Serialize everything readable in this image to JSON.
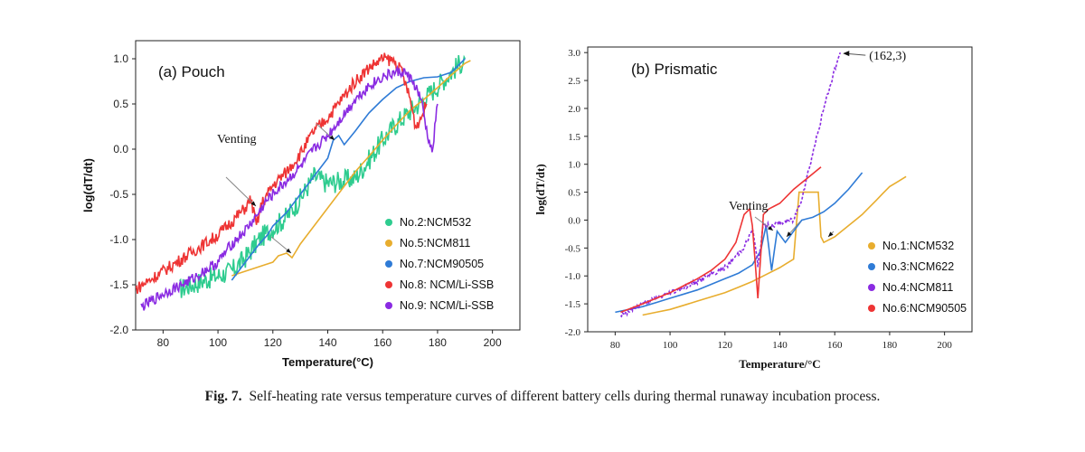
{
  "chart_data": [
    {
      "type": "line",
      "title": "(a) Pouch",
      "xlabel": "Temperature(°C)",
      "ylabel": "log(dT/dt)",
      "xlim": [
        70,
        210
      ],
      "ylim": [
        -2.0,
        1.2
      ],
      "xticks": [
        "80",
        "100",
        "120",
        "140",
        "160",
        "180",
        "200"
      ],
      "yticks": [
        "1.0",
        "0.5",
        "0.0",
        "-0.5",
        "-1.0",
        "-1.5",
        "-2.0"
      ],
      "legend_position": "bottom-right",
      "annotation": "Venting",
      "series": [
        {
          "name": "No.2:NCM532",
          "color": "#2ecc8f",
          "noise": 0.12,
          "x": [
            86,
            95,
            100,
            105,
            110,
            115,
            118,
            125,
            130,
            135,
            140,
            145,
            150,
            155,
            160,
            165,
            170,
            175,
            180,
            185,
            190
          ],
          "y": [
            -1.55,
            -1.45,
            -1.4,
            -1.35,
            -1.2,
            -1.0,
            -0.92,
            -0.75,
            -0.55,
            -0.3,
            -0.38,
            -0.35,
            -0.32,
            -0.12,
            0.1,
            0.28,
            0.42,
            0.55,
            0.7,
            0.85,
            1.0
          ]
        },
        {
          "name": "No.5:NCM811",
          "color": "#e8ad2e",
          "noise": 0.0,
          "x": [
            105,
            110,
            115,
            120,
            122,
            125,
            127,
            130,
            135,
            140,
            145,
            150,
            155,
            160,
            165,
            170,
            175,
            180,
            185,
            190,
            192
          ],
          "y": [
            -1.4,
            -1.35,
            -1.3,
            -1.25,
            -1.18,
            -1.15,
            -1.2,
            -1.05,
            -0.85,
            -0.65,
            -0.45,
            -0.25,
            -0.08,
            0.1,
            0.27,
            0.43,
            0.55,
            0.68,
            0.82,
            0.95,
            0.98
          ]
        },
        {
          "name": "No.7:NCM90505",
          "color": "#2f7bd6",
          "noise": 0.0,
          "x": [
            105,
            110,
            115,
            118,
            120,
            125,
            130,
            135,
            140,
            142,
            144,
            146,
            150,
            155,
            160,
            165,
            170,
            175,
            180,
            185,
            190
          ],
          "y": [
            -1.45,
            -1.25,
            -1.05,
            -0.95,
            -0.85,
            -0.7,
            -0.5,
            -0.3,
            -0.1,
            0.1,
            0.15,
            0.05,
            0.2,
            0.4,
            0.55,
            0.68,
            0.75,
            0.79,
            0.8,
            0.85,
            1.0
          ]
        },
        {
          "name": "No.8: NCM/Li-SSB",
          "color": "#ee3434",
          "noise": 0.07,
          "x": [
            70,
            75,
            80,
            90,
            100,
            105,
            110,
            112,
            114,
            116,
            120,
            125,
            130,
            135,
            140,
            145,
            150,
            155,
            160,
            164,
            167,
            170,
            172,
            174,
            176
          ],
          "y": [
            -1.55,
            -1.45,
            -1.35,
            -1.15,
            -0.95,
            -0.8,
            -0.65,
            -0.55,
            -0.85,
            -0.6,
            -0.4,
            -0.25,
            -0.05,
            0.2,
            0.35,
            0.55,
            0.75,
            0.9,
            1.0,
            0.98,
            0.85,
            0.55,
            0.25,
            0.35,
            0.5
          ]
        },
        {
          "name": "No.9: NCM/Li-SSB",
          "color": "#8a2be2",
          "noise": 0.06,
          "x": [
            72,
            80,
            90,
            100,
            105,
            110,
            115,
            117,
            120,
            125,
            130,
            135,
            140,
            145,
            150,
            155,
            160,
            165,
            168,
            171,
            174,
            176,
            178,
            180
          ],
          "y": [
            -1.75,
            -1.6,
            -1.45,
            -1.25,
            -1.05,
            -0.9,
            -0.7,
            -0.6,
            -0.5,
            -0.35,
            -0.2,
            0.0,
            0.15,
            0.35,
            0.55,
            0.7,
            0.8,
            0.85,
            0.85,
            0.75,
            0.55,
            0.2,
            -0.05,
            0.5
          ]
        }
      ]
    },
    {
      "type": "line",
      "title": "(b) Prismatic",
      "xlabel": "Temperature/°C",
      "ylabel": "log(dT/dt)",
      "xlim": [
        70,
        210
      ],
      "ylim": [
        -2.0,
        3.1
      ],
      "xticks": [
        "80",
        "100",
        "120",
        "140",
        "160",
        "180",
        "200"
      ],
      "yticks": [
        "3.0",
        "2.5",
        "2.0",
        "1.5",
        "1.0",
        "0.5",
        "0.0",
        "-0.5",
        "-1.0",
        "-1.5",
        "-2.0"
      ],
      "legend_position": "bottom-right",
      "annotation": "Venting",
      "peak_label": "(162,3)",
      "series": [
        {
          "name": "No.1:NCM532",
          "color": "#e8ad2e",
          "noise": 0.0,
          "x": [
            90,
            100,
            110,
            120,
            130,
            140,
            145,
            147,
            148,
            152,
            154,
            155,
            156,
            160,
            165,
            170,
            175,
            180,
            186
          ],
          "y": [
            -1.7,
            -1.6,
            -1.45,
            -1.3,
            -1.1,
            -0.85,
            -0.7,
            0.5,
            0.5,
            0.5,
            0.5,
            -0.3,
            -0.4,
            -0.3,
            -0.1,
            0.1,
            0.35,
            0.6,
            0.78
          ]
        },
        {
          "name": "No.3:NCM622",
          "color": "#2f7bd6",
          "noise": 0.0,
          "x": [
            80,
            90,
            100,
            110,
            120,
            125,
            130,
            133,
            135,
            137,
            139,
            142,
            145,
            148,
            152,
            156,
            160,
            165,
            170
          ],
          "y": [
            -1.65,
            -1.55,
            -1.4,
            -1.25,
            -1.05,
            -0.95,
            -0.8,
            -0.55,
            -0.1,
            -0.9,
            -0.2,
            -0.4,
            -0.2,
            0.0,
            0.05,
            0.15,
            0.3,
            0.55,
            0.85
          ]
        },
        {
          "name": "No.4:NCM811",
          "color": "#8a2be2",
          "noise": 0.05,
          "x": [
            82,
            90,
            100,
            110,
            120,
            125,
            128,
            130,
            132,
            134,
            136,
            140,
            145,
            148,
            152,
            156,
            160,
            162
          ],
          "y": [
            -1.7,
            -1.5,
            -1.3,
            -1.1,
            -0.85,
            -0.6,
            -0.4,
            -0.15,
            -0.8,
            -0.1,
            -0.1,
            -0.05,
            0.0,
            0.4,
            1.2,
            2.0,
            2.7,
            3.0
          ]
        },
        {
          "name": "No.6:NCM90505",
          "color": "#ee3434",
          "noise": 0.0,
          "x": [
            82,
            90,
            100,
            110,
            115,
            120,
            124,
            127,
            129,
            130,
            132,
            134,
            136,
            140,
            145,
            150,
            155
          ],
          "y": [
            -1.65,
            -1.5,
            -1.3,
            -1.05,
            -0.9,
            -0.7,
            -0.4,
            0.1,
            0.2,
            -0.1,
            -1.4,
            0.1,
            0.2,
            0.3,
            0.55,
            0.75,
            0.95
          ]
        }
      ]
    }
  ],
  "caption": {
    "label": "Fig. 7.",
    "text": "Self-heating rate versus temperature curves of different battery cells during thermal runaway incubation process."
  }
}
